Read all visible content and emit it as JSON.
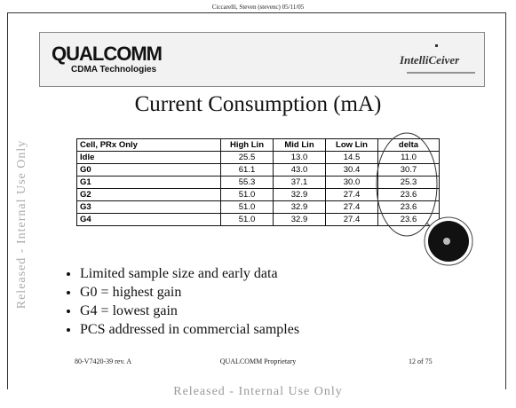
{
  "header": {
    "author": "Ciccarelli, Steven (stevenc) 05/11/05",
    "logo": "QUALCOMM",
    "logo_sub": "CDMA Technologies",
    "product": "IntelliCeiver"
  },
  "title": "Current Consumption (mA)",
  "table": {
    "columns": [
      "Cell, PRx Only",
      "High Lin",
      "Mid Lin",
      "Low Lin",
      "delta"
    ],
    "rows": [
      [
        "Idle",
        "25.5",
        "13.0",
        "14.5",
        "11.0"
      ],
      [
        "G0",
        "61.1",
        "43.0",
        "30.4",
        "30.7"
      ],
      [
        "G1",
        "55.3",
        "37.1",
        "30.0",
        "25.3"
      ],
      [
        "G2",
        "51.0",
        "32.9",
        "27.4",
        "23.6"
      ],
      [
        "G3",
        "51.0",
        "32.9",
        "27.4",
        "23.6"
      ],
      [
        "G4",
        "51.0",
        "32.9",
        "27.4",
        "23.6"
      ]
    ]
  },
  "bullets": [
    "Limited sample size and early data",
    "G0 = highest gain",
    "G4 = lowest gain",
    "PCS addressed in commercial samples"
  ],
  "footer": {
    "doc": "80-V7420-39 rev. A",
    "center": "QUALCOMM Proprietary",
    "page": "12 of 75"
  },
  "watermark": "Released - Internal Use Only"
}
